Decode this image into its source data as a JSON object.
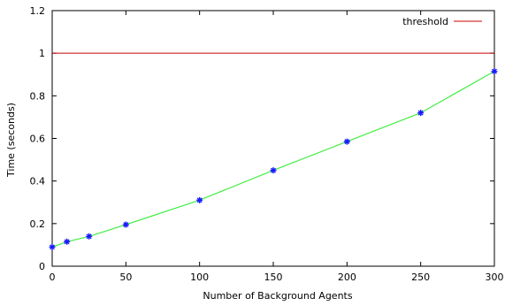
{
  "chart_data": {
    "type": "line",
    "title": "",
    "xlabel": "Number of Background Agents",
    "ylabel": "Time (seconds)",
    "xlim": [
      0,
      300
    ],
    "ylim": [
      0,
      1.2
    ],
    "x_ticks": [
      0,
      50,
      100,
      150,
      200,
      250,
      300
    ],
    "y_ticks": [
      0,
      0.2,
      0.4,
      0.6,
      0.8,
      1,
      1.2
    ],
    "x_tick_labels": [
      "0",
      "50",
      "100",
      "150",
      "200",
      "250",
      "300"
    ],
    "y_tick_labels": [
      "0",
      "0.2",
      "0.4",
      "0.6",
      "0.8",
      "1",
      "1.2"
    ],
    "grid": false,
    "legend_position": "top-right",
    "series": [
      {
        "name": "",
        "line_color": "#44ee44",
        "marker_color": "#1a1aff",
        "marker": "asterisk",
        "x": [
          0,
          10,
          25,
          50,
          100,
          150,
          200,
          250,
          300
        ],
        "y": [
          0.09,
          0.115,
          0.14,
          0.195,
          0.31,
          0.45,
          0.585,
          0.72,
          0.915
        ]
      }
    ],
    "reference_lines": [
      {
        "name": "threshold",
        "y": 1,
        "color": "#cc0000"
      }
    ]
  }
}
